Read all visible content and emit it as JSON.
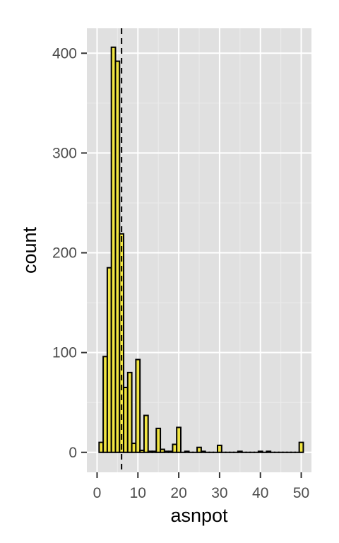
{
  "chart_data": {
    "type": "bar",
    "subtype": "histogram",
    "xlabel": "asnpot",
    "ylabel": "count",
    "xlim": [
      -2.5,
      52.5
    ],
    "ylim": [
      -20,
      425
    ],
    "x_ticks": [
      0,
      10,
      20,
      30,
      40,
      50
    ],
    "y_ticks": [
      0,
      100,
      200,
      300,
      400
    ],
    "x_tick_labels": [
      "0",
      "10",
      "20",
      "30",
      "40",
      "50"
    ],
    "y_tick_labels": [
      "0",
      "100",
      "200",
      "300",
      "400"
    ],
    "grid": true,
    "bin_width": 1,
    "bins_x": [
      1,
      2,
      3,
      4,
      5,
      6,
      7,
      8,
      9,
      10,
      11,
      12,
      13,
      14,
      15,
      16,
      17,
      18,
      19,
      20,
      21,
      22,
      23,
      24,
      25,
      26,
      27,
      28,
      29,
      30,
      31,
      32,
      33,
      34,
      35,
      36,
      37,
      38,
      39,
      40,
      41,
      42,
      43,
      44,
      45,
      46,
      47,
      48,
      49,
      50
    ],
    "counts": [
      10,
      96,
      185,
      406,
      392,
      219,
      65,
      80,
      9,
      93,
      2,
      37,
      1,
      1,
      24,
      3,
      1,
      1,
      8,
      25,
      0,
      1,
      0,
      0,
      5,
      1,
      0,
      0,
      0,
      7,
      0,
      0,
      0,
      0,
      1,
      0,
      0,
      0,
      0,
      1,
      0,
      1,
      0,
      0,
      0,
      0,
      0,
      0,
      0,
      10
    ],
    "reference_line": {
      "x": 6,
      "style": "dashed"
    },
    "colors": {
      "panel": "#e0e0e0",
      "grid_major": "#ffffff",
      "grid_minor": "#ebebeb",
      "bar_fill": "#f0e442",
      "bar_outline": "#000000"
    }
  }
}
